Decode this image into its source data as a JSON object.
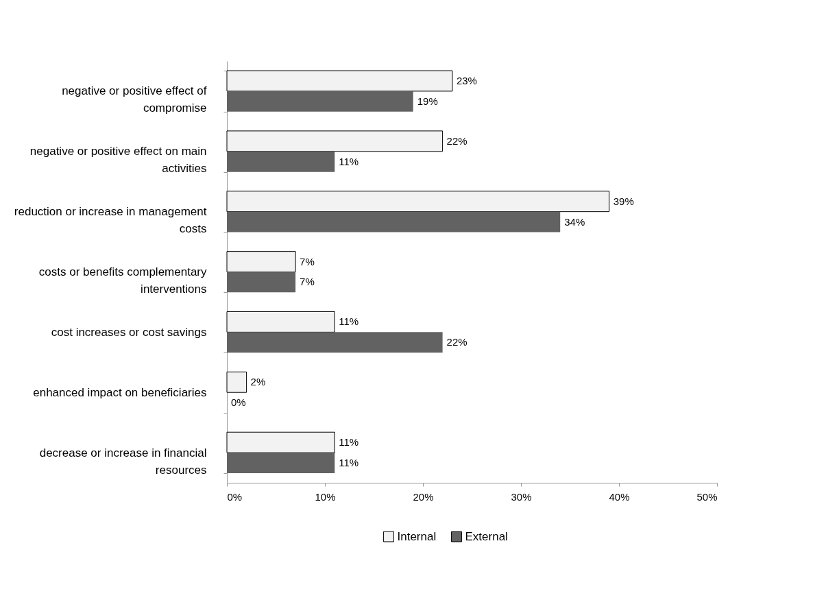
{
  "chart_data": {
    "type": "bar",
    "orientation": "horizontal",
    "categories": [
      "negative or positive effect of compromise",
      "negative or positive effect on main activities",
      "reduction or increase in management costs",
      "costs or benefits complementary interventions",
      "cost increases or cost savings",
      "enhanced impact on beneficiaries",
      "decrease or increase in financial resources"
    ],
    "series": [
      {
        "name": "Internal",
        "color": "#f2f2f2",
        "values": [
          23,
          22,
          39,
          7,
          11,
          2,
          11
        ],
        "value_labels": [
          "23%",
          "22%",
          "39%",
          "7%",
          "11%",
          "2%",
          "11%"
        ]
      },
      {
        "name": "External",
        "color": "#626262",
        "values": [
          19,
          11,
          34,
          7,
          22,
          0,
          11
        ],
        "value_labels": [
          "19%",
          "11%",
          "34%",
          "7%",
          "22%",
          "0%",
          "11%"
        ]
      }
    ],
    "xlim": [
      0,
      50
    ],
    "xticks": [
      {
        "value": 0,
        "label": "0%"
      },
      {
        "value": 10,
        "label": "10%"
      },
      {
        "value": 20,
        "label": "20%"
      },
      {
        "value": 30,
        "label": "30%"
      },
      {
        "value": 40,
        "label": "40%"
      },
      {
        "value": 50,
        "label": "50%"
      }
    ],
    "grid": false,
    "legend": "bottom"
  }
}
